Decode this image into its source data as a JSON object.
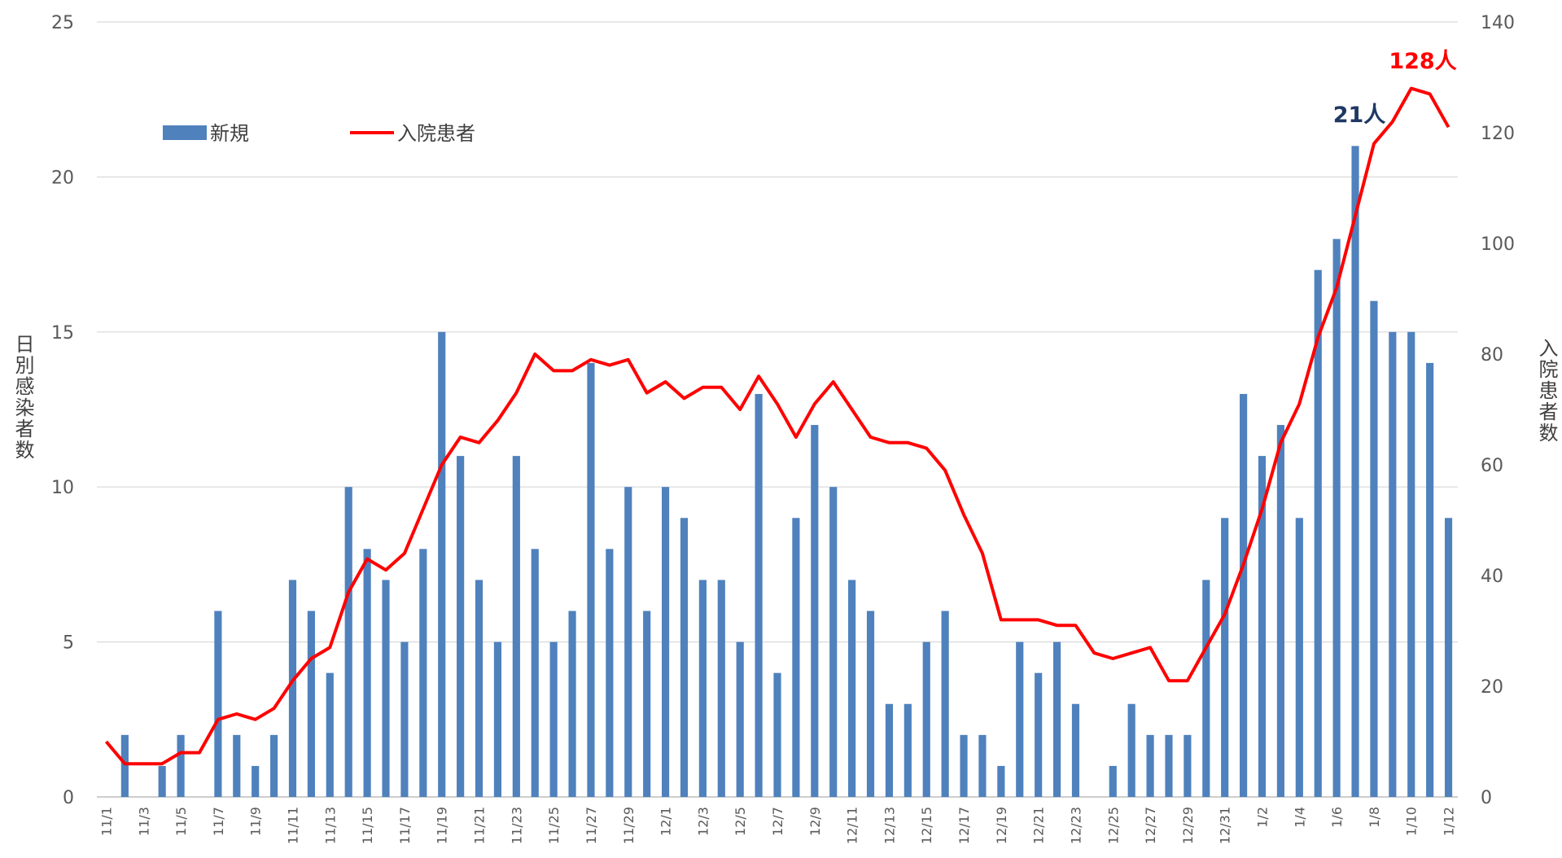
{
  "chart_data": {
    "type": "bar_line",
    "categories": [
      "11/1",
      null,
      "11/3",
      null,
      "11/5",
      null,
      "11/7",
      null,
      "11/9",
      null,
      "11/11",
      null,
      "11/13",
      null,
      "11/15",
      null,
      "11/17",
      null,
      "11/19",
      null,
      "11/21",
      null,
      "11/23",
      null,
      "11/25",
      null,
      "11/27",
      null,
      "11/29",
      null,
      "12/1",
      null,
      "12/3",
      null,
      "12/5",
      null,
      "12/7",
      null,
      "12/9",
      null,
      "12/11",
      null,
      "12/13",
      null,
      "12/15",
      null,
      "12/17",
      null,
      "12/19",
      null,
      "12/21",
      null,
      "12/23",
      null,
      "12/25",
      null,
      "12/27",
      null,
      "12/29",
      null,
      "12/31",
      null,
      "1/2",
      null,
      "1/4",
      null,
      "1/6",
      null,
      "1/8",
      null,
      "1/10",
      null,
      "1/12"
    ],
    "series": [
      {
        "name": "新規",
        "type": "bar",
        "color": "#4f81bd",
        "axis": "y",
        "values": [
          0,
          2,
          0,
          1,
          2,
          0,
          6,
          2,
          1,
          2,
          7,
          6,
          4,
          10,
          8,
          7,
          5,
          8,
          15,
          11,
          7,
          5,
          11,
          8,
          5,
          6,
          14,
          8,
          10,
          6,
          10,
          9,
          7,
          7,
          5,
          13,
          4,
          9,
          12,
          10,
          7,
          6,
          3,
          3,
          5,
          6,
          2,
          2,
          1,
          5,
          4,
          5,
          3,
          0,
          1,
          3,
          2,
          2,
          2,
          7,
          9,
          13,
          11,
          12,
          9,
          17,
          18,
          21,
          16,
          15,
          15,
          14,
          9
        ]
      },
      {
        "name": "入院患者",
        "type": "line",
        "color": "#ff0000",
        "axis": "y2",
        "values": [
          10,
          6,
          6,
          6,
          8,
          8,
          14,
          15,
          14,
          16,
          21,
          25,
          27,
          37,
          43,
          41,
          44,
          52,
          60,
          65,
          64,
          68,
          73,
          80,
          77,
          77,
          79,
          78,
          79,
          73,
          75,
          72,
          74,
          74,
          70,
          76,
          71,
          65,
          71,
          75,
          70,
          65,
          64,
          64,
          63,
          59,
          51,
          44,
          32,
          32,
          32,
          31,
          31,
          26,
          25,
          26,
          27,
          21,
          21,
          27,
          33,
          42,
          52,
          64,
          71,
          83,
          92,
          105,
          118,
          122,
          128,
          127,
          121
        ]
      }
    ],
    "ylabel": "日別感染者数",
    "y2label": "入院患者数",
    "ylim": [
      0,
      25
    ],
    "yticks": [
      0,
      5,
      10,
      15,
      20,
      25
    ],
    "y2lim": [
      0,
      140
    ],
    "y2ticks": [
      0,
      20,
      40,
      60,
      80,
      100,
      120,
      140
    ],
    "grid": true,
    "legend": "upper left",
    "annotations": [
      {
        "text": "21人",
        "color": "#1f3864"
      },
      {
        "text": "128人",
        "color": "#ff0000"
      }
    ]
  }
}
